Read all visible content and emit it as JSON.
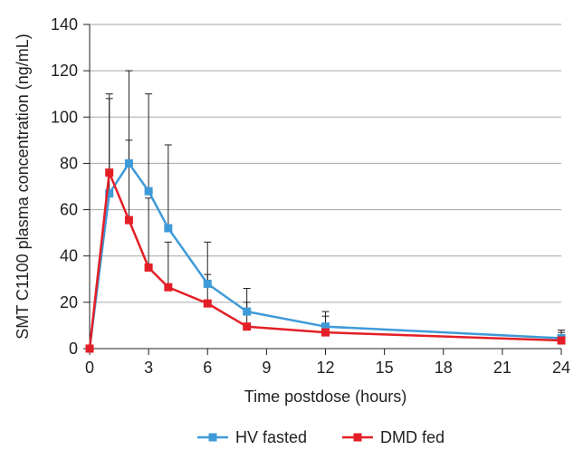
{
  "chart_data": {
    "type": "line",
    "title": "",
    "xlabel": "Time postdose (hours)",
    "ylabel": "SMT C1100 plasma concentration (ng/mL)",
    "xlim": [
      0,
      24
    ],
    "ylim": [
      0,
      140
    ],
    "xticks": [
      0,
      3,
      6,
      9,
      12,
      15,
      18,
      21,
      24
    ],
    "yticks": [
      0,
      20,
      40,
      60,
      80,
      100,
      120,
      140
    ],
    "grid": "horizontal",
    "legend": "bottom",
    "series": [
      {
        "name": "HV fasted",
        "color": "#3f9ad8",
        "x": [
          0,
          1,
          2,
          3,
          4,
          6,
          8,
          12,
          24
        ],
        "y": [
          0,
          67,
          80,
          68,
          52,
          28,
          16,
          9.5,
          4.5
        ],
        "error_upper": [
          0,
          110,
          120,
          110,
          88,
          46,
          26,
          16,
          8
        ]
      },
      {
        "name": "DMD fed",
        "color": "#e41e26",
        "x": [
          0,
          1,
          2,
          3,
          4,
          6,
          8,
          12,
          24
        ],
        "y": [
          0,
          76,
          55.5,
          35,
          26.5,
          19.5,
          9.5,
          7,
          3.5
        ],
        "error_upper": [
          0,
          108,
          90,
          65,
          46,
          32,
          20,
          14,
          7
        ]
      }
    ]
  }
}
